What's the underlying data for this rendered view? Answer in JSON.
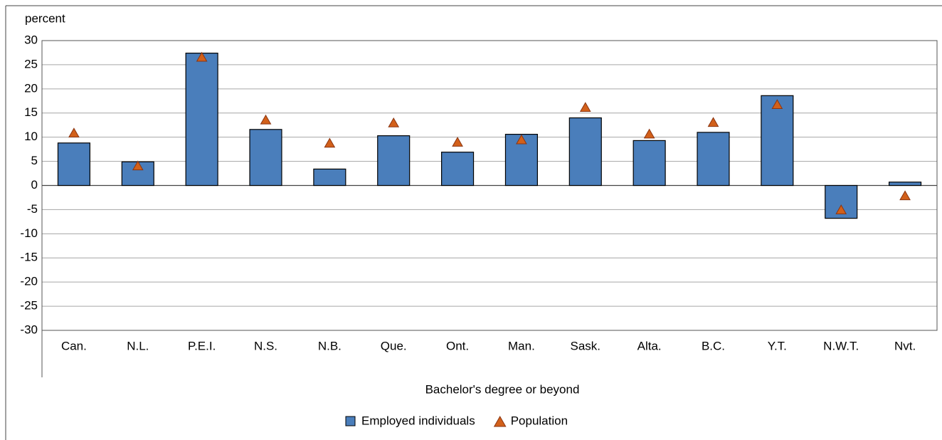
{
  "chart_data": {
    "type": "bar",
    "y_label": "percent",
    "x_label": "Bachelor's degree or beyond",
    "categories": [
      "Can.",
      "N.L.",
      "P.E.I.",
      "N.S.",
      "N.B.",
      "Que.",
      "Ont.",
      "Man.",
      "Sask.",
      "Alta.",
      "B.C.",
      "Y.T.",
      "N.W.T.",
      "Nvt."
    ],
    "series": [
      {
        "name": "Employed individuals",
        "type": "bar",
        "color": "#4a7ebb",
        "values": [
          8.8,
          4.9,
          27.4,
          11.6,
          3.4,
          10.3,
          6.9,
          10.6,
          14.0,
          9.3,
          11.0,
          18.6,
          -6.8,
          0.7
        ]
      },
      {
        "name": "Population",
        "type": "triangle",
        "color": "#d2601a",
        "values": [
          10.8,
          4.0,
          26.5,
          13.5,
          8.7,
          12.9,
          8.9,
          9.4,
          16.1,
          10.6,
          13.0,
          16.7,
          -5.1,
          -2.2
        ]
      }
    ],
    "ylim": [
      -30,
      30
    ],
    "yticks": [
      -30,
      -25,
      -20,
      -15,
      -10,
      -5,
      0,
      5,
      10,
      15,
      20,
      25,
      30
    ],
    "grid": true
  }
}
